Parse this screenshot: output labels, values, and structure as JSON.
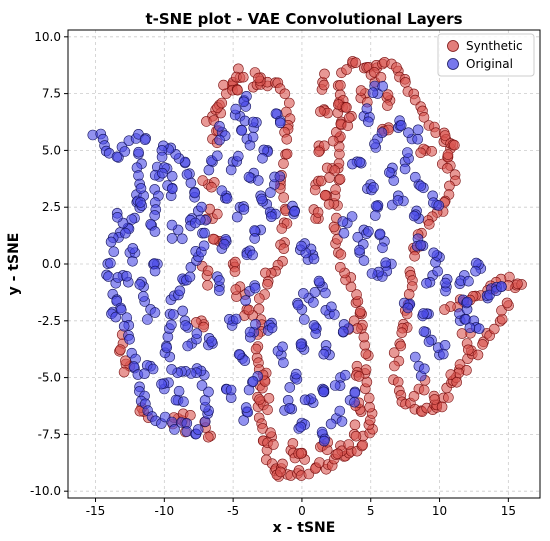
{
  "chart_data": {
    "type": "scatter",
    "title": "t-SNE plot - VAE Convolutional Layers",
    "xlabel": "x - tSNE",
    "ylabel": "y - tSNE",
    "xlim": [
      -17,
      17.3
    ],
    "ylim": [
      -10.3,
      10.3
    ],
    "xticks": [
      -15,
      -10,
      -5,
      0,
      5,
      10,
      15
    ],
    "yticks": [
      -10.0,
      -7.5,
      -5.0,
      -2.5,
      0.0,
      2.5,
      5.0,
      7.5,
      10.0
    ],
    "grid": true,
    "legend_position": "top-right",
    "series": [
      {
        "name": "Synthetic",
        "color": "#d9534f",
        "edge_color": "#7a1010",
        "trace": [
          [
            -3.5,
            8.0
          ],
          [
            -2.0,
            8.1
          ],
          [
            -1.2,
            7.5
          ],
          [
            -1.0,
            6.5
          ],
          [
            -1.2,
            5.0
          ],
          [
            -1.5,
            3.5
          ],
          [
            -1.2,
            2.0
          ],
          [
            -1.4,
            0.5
          ],
          [
            -2.5,
            -0.5
          ],
          [
            -3.0,
            -2.0
          ],
          [
            -3.2,
            -3.5
          ],
          [
            -3.0,
            -5.5
          ],
          [
            -3.0,
            -7.0
          ],
          [
            -2.6,
            -8.3
          ],
          [
            -1.8,
            -9.2
          ],
          [
            -0.5,
            -9.3
          ],
          [
            0.8,
            -9.0
          ],
          [
            2.2,
            -8.8
          ],
          [
            3.5,
            -8.5
          ],
          [
            4.5,
            -8.0
          ],
          [
            5.0,
            -7.3
          ],
          [
            4.8,
            -5.5
          ],
          [
            4.5,
            -3.5
          ],
          [
            4.0,
            -1.5
          ],
          [
            3.0,
            0.0
          ],
          [
            2.3,
            1.5
          ],
          [
            2.5,
            3.0
          ],
          [
            2.8,
            4.5
          ],
          [
            2.8,
            6.5
          ],
          [
            2.5,
            7.8
          ],
          [
            3.2,
            8.6
          ],
          [
            4.0,
            8.8
          ],
          [
            5.0,
            8.6
          ],
          [
            5.8,
            8.7
          ],
          [
            6.8,
            8.6
          ],
          [
            7.5,
            8.1
          ],
          [
            8.3,
            7.0
          ],
          [
            9.2,
            6.2
          ],
          [
            10.2,
            5.8
          ],
          [
            10.8,
            4.8
          ],
          [
            11.0,
            3.8
          ],
          [
            10.4,
            2.6
          ],
          [
            9.3,
            1.8
          ],
          [
            8.2,
            0.7
          ],
          [
            7.8,
            -1.0
          ],
          [
            7.6,
            -2.5
          ],
          [
            7.0,
            -3.5
          ],
          [
            6.8,
            -5.0
          ],
          [
            7.3,
            -6.0
          ],
          [
            8.5,
            -6.4
          ],
          [
            9.5,
            -6.5
          ],
          [
            10.5,
            -5.8
          ],
          [
            11.3,
            -4.8
          ],
          [
            12.5,
            -4.0
          ],
          [
            13.8,
            -3.0
          ],
          [
            15.0,
            -1.5
          ],
          [
            15.8,
            -0.8
          ],
          [
            14.2,
            -0.8
          ],
          [
            13.0,
            -1.3
          ],
          [
            11.8,
            -1.5
          ],
          [
            10.2,
            -2.0
          ]
        ],
        "scatter": [
          [
            -6.5,
            6.5
          ],
          [
            -6.0,
            7.0
          ],
          [
            -5.5,
            7.5
          ],
          [
            -5.0,
            8.0
          ],
          [
            -4.5,
            8.2
          ],
          [
            -3.0,
            8.2
          ],
          [
            -6.5,
            5.5
          ],
          [
            -6.8,
            3.5
          ],
          [
            -6.5,
            2.0
          ],
          [
            -6.0,
            1.0
          ],
          [
            -5.0,
            0.0
          ],
          [
            -4.5,
            -1.0
          ],
          [
            -4.0,
            -2.0
          ],
          [
            1.2,
            2.0
          ],
          [
            1.0,
            3.5
          ],
          [
            1.3,
            5.0
          ],
          [
            1.6,
            6.8
          ],
          [
            1.5,
            8.0
          ],
          [
            3.0,
            7.2
          ],
          [
            2.5,
            5.8
          ],
          [
            2.2,
            4.2
          ],
          [
            1.8,
            3.0
          ],
          [
            -1.5,
            -9.0
          ],
          [
            -0.8,
            -8.2
          ],
          [
            0.2,
            -8.6
          ],
          [
            1.5,
            -8.0
          ],
          [
            2.8,
            -8.0
          ],
          [
            3.8,
            -7.5
          ],
          [
            4.3,
            -6.5
          ],
          [
            4.0,
            -4.5
          ],
          [
            3.8,
            -2.5
          ],
          [
            -2.2,
            -7.6
          ],
          [
            -2.8,
            -6.2
          ],
          [
            -2.6,
            -4.8
          ],
          [
            -11.5,
            -6.5
          ],
          [
            -9.0,
            -6.8
          ],
          [
            -7.0,
            -7.2
          ],
          [
            -12.5,
            -4.5
          ],
          [
            -13.0,
            -3.5
          ],
          [
            -8.5,
            -7.0
          ],
          [
            8.5,
            -5.5
          ],
          [
            9.8,
            -6.2
          ],
          [
            11.2,
            -5.0
          ],
          [
            12.0,
            -3.5
          ],
          [
            6.4,
            7.2
          ],
          [
            6.3,
            6.0
          ],
          [
            5.3,
            8.0
          ],
          [
            4.6,
            7.5
          ],
          [
            3.6,
            6.5
          ],
          [
            10.8,
            5.3
          ],
          [
            10.2,
            4.4
          ],
          [
            9.0,
            5.0
          ],
          [
            -6.9,
            -0.5
          ],
          [
            -7.3,
            -2.5
          ]
        ]
      },
      {
        "name": "Original",
        "color": "#4a4ae6",
        "edge_color": "#15155e",
        "trace": [
          [
            -15.0,
            5.7
          ],
          [
            -14.5,
            5.3
          ],
          [
            -13.8,
            4.8
          ],
          [
            -13.0,
            5.0
          ],
          [
            -12.2,
            5.4
          ],
          [
            -11.5,
            5.6
          ],
          [
            -11.8,
            4.5
          ],
          [
            -12.0,
            3.5
          ],
          [
            -12.0,
            2.0
          ],
          [
            -13.0,
            1.5
          ],
          [
            -13.8,
            0.8
          ],
          [
            -14.0,
            -0.5
          ],
          [
            -13.5,
            -1.5
          ],
          [
            -14.0,
            -2.3
          ],
          [
            -13.0,
            -2.0
          ],
          [
            -12.5,
            -3.5
          ],
          [
            -12.0,
            -5.0
          ],
          [
            -11.5,
            -6.0
          ],
          [
            -10.5,
            -6.8
          ],
          [
            -9.5,
            -7.0
          ],
          [
            -8.5,
            -7.2
          ],
          [
            -7.5,
            -7.5
          ],
          [
            -6.8,
            -6.5
          ],
          [
            -7.0,
            -5.5
          ],
          [
            -7.5,
            -4.5
          ],
          [
            -8.5,
            -4.7
          ],
          [
            -9.5,
            -4.5
          ],
          [
            -10.0,
            -3.5
          ],
          [
            -9.5,
            -2.0
          ],
          [
            -9.0,
            -1.0
          ],
          [
            -8.0,
            -0.5
          ],
          [
            -7.5,
            0.5
          ],
          [
            -7.0,
            1.5
          ],
          [
            -7.5,
            2.5
          ],
          [
            -8.0,
            3.5
          ],
          [
            -8.5,
            4.5
          ],
          [
            -9.0,
            5.0
          ],
          [
            -10.0,
            5.2
          ],
          [
            -10.5,
            4.0
          ],
          [
            -10.5,
            2.5
          ],
          [
            -11.0,
            1.0
          ]
        ],
        "scatter": [
          [
            -4.5,
            6.5
          ],
          [
            -4.0,
            5.5
          ],
          [
            -3.5,
            4.0
          ],
          [
            -3.0,
            3.0
          ],
          [
            -4.5,
            2.5
          ],
          [
            -5.5,
            3.0
          ],
          [
            -5.0,
            4.5
          ],
          [
            -3.5,
            6.0
          ],
          [
            -2.5,
            5.0
          ],
          [
            -2.0,
            3.5
          ],
          [
            -3.0,
            1.5
          ],
          [
            -4.0,
            0.5
          ],
          [
            -5.5,
            1.0
          ],
          [
            -6.0,
            -1.0
          ],
          [
            -5.0,
            -2.5
          ],
          [
            -4.5,
            -4.0
          ],
          [
            -5.5,
            -5.5
          ],
          [
            -4.0,
            -6.5
          ],
          [
            -6.5,
            -3.5
          ],
          [
            -3.5,
            -3.0
          ],
          [
            0.5,
            -1.5
          ],
          [
            1.0,
            -2.8
          ],
          [
            0.0,
            -3.5
          ],
          [
            -0.5,
            -5.0
          ],
          [
            0.5,
            -6.0
          ],
          [
            1.5,
            -5.5
          ],
          [
            2.0,
            -4.0
          ],
          [
            2.5,
            -6.8
          ],
          [
            1.5,
            -7.5
          ],
          [
            0.0,
            -7.0
          ],
          [
            -1.0,
            -6.0
          ],
          [
            -1.5,
            -4.0
          ],
          [
            0.0,
            -2.0
          ],
          [
            1.5,
            -1.0
          ],
          [
            3.0,
            -3.0
          ],
          [
            2.8,
            -5.0
          ],
          [
            5.0,
            3.5
          ],
          [
            5.5,
            2.5
          ],
          [
            4.5,
            1.5
          ],
          [
            6.0,
            1.0
          ],
          [
            6.5,
            0.0
          ],
          [
            5.5,
            -0.5
          ],
          [
            7.0,
            3.0
          ],
          [
            7.5,
            4.5
          ],
          [
            8.0,
            5.5
          ],
          [
            7.0,
            6.0
          ],
          [
            5.5,
            5.5
          ],
          [
            4.5,
            6.5
          ],
          [
            5.5,
            7.5
          ],
          [
            4.0,
            4.5
          ],
          [
            8.5,
            3.5
          ],
          [
            9.5,
            3.0
          ],
          [
            8.5,
            2.0
          ],
          [
            6.5,
            4.0
          ],
          [
            9.5,
            -0.5
          ],
          [
            10.5,
            -1.0
          ],
          [
            11.5,
            -2.5
          ],
          [
            12.5,
            -2.5
          ],
          [
            13.5,
            -1.5
          ],
          [
            14.5,
            -1.0
          ],
          [
            9.0,
            -3.0
          ],
          [
            10.0,
            -4.0
          ],
          [
            8.5,
            -4.5
          ],
          [
            12.0,
            -2.0
          ],
          [
            -11.0,
            -2.0
          ],
          [
            -10.5,
            0.0
          ],
          [
            -11.5,
            -1.0
          ],
          [
            -9.0,
            1.5
          ],
          [
            -9.5,
            3.0
          ],
          [
            -8.0,
            2.0
          ],
          [
            -12.5,
            0.5
          ],
          [
            -13.0,
            -0.5
          ],
          [
            -11.5,
            3.0
          ],
          [
            -8.5,
            -2.5
          ],
          [
            -8.0,
            -3.5
          ],
          [
            -11.0,
            -4.5
          ],
          [
            -10.0,
            -5.5
          ],
          [
            -9.0,
            -6.0
          ],
          [
            -13.0,
            1.8
          ],
          [
            -9.8,
            4.2
          ],
          [
            -6.5,
            4.5
          ],
          [
            -5.8,
            5.8
          ],
          [
            -4.2,
            7.2
          ],
          [
            -1.8,
            6.6
          ],
          [
            -2.2,
            2.2
          ],
          [
            -3.8,
            -1.2
          ],
          [
            -2.2,
            -2.6
          ],
          [
            -3.6,
            -5.2
          ],
          [
            0.8,
            0.4
          ],
          [
            0.2,
            0.9
          ],
          [
            -0.6,
            2.2
          ],
          [
            2.0,
            -2.2
          ],
          [
            3.5,
            -6.0
          ],
          [
            4.2,
            0.5
          ],
          [
            3.3,
            1.8
          ],
          [
            7.8,
            -1.8
          ],
          [
            8.8,
            0.8
          ],
          [
            10.0,
            0.3
          ],
          [
            11.8,
            -0.5
          ],
          [
            13.0,
            -0.2
          ],
          [
            9.2,
            -2.2
          ]
        ]
      }
    ]
  }
}
